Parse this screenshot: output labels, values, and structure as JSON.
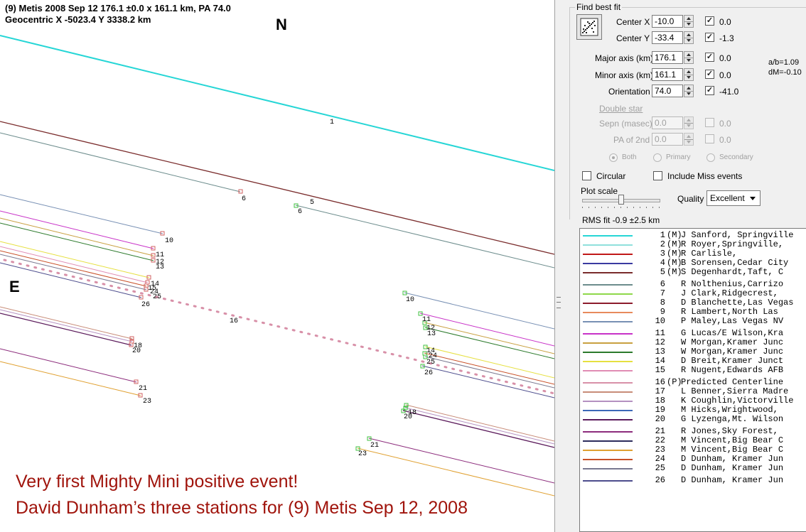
{
  "plot": {
    "header_line1": "(9) Metis  2008 Sep 12   176.1 ±0.0 x 161.1 km, PA 74.0",
    "header_line2": "Geocentric  X -5023.4  Y 3338.2 km",
    "north_label": "N",
    "east_label": "E",
    "caption_line1": "Very first Mighty Mini positive event!",
    "caption_line2": "David Dunham’s three stations for (9) Metis Sep 12, 2008",
    "chord_labels": {
      "l1": "1",
      "l6a": "6",
      "l5": "5",
      "l6b": "6",
      "l10a": "10",
      "l11a": "11",
      "l12a": "12",
      "l13a": "13",
      "l14a": "14",
      "l15a": "15",
      "l24a": "24",
      "l25a": "25",
      "l26a": "26",
      "l16": "16",
      "l18a": "18",
      "l20a": "20",
      "l21a": "21",
      "l23a": "23",
      "l10b": "10",
      "l11b": "11",
      "l12b": "12",
      "l13b": "13",
      "l14b": "14",
      "l24b": "24",
      "l25b": "25",
      "l26b": "26",
      "l18b": "18",
      "l20b": "20",
      "l21b": "21",
      "l23b": "23"
    }
  },
  "panel": {
    "group_title": "Find best fit",
    "fit_icon": "best-fit-chart-icon",
    "center_x_label": "Center X",
    "center_x_value": "-10.0",
    "center_x_check": "0.0",
    "center_y_label": "Center Y",
    "center_y_value": "-33.4",
    "center_y_check": "-1.3",
    "major_label": "Major axis (km)",
    "major_value": "176.1",
    "major_check": "0.0",
    "minor_label": "Minor axis (km)",
    "minor_value": "161.1",
    "minor_check": "0.0",
    "orient_label": "Orientation",
    "orient_value": "74.0",
    "orient_check": "-41.0",
    "ab_ratio": "a/b=1.09",
    "dm": "dM=-0.10",
    "double_star_title": "Double star",
    "sepn_label": "Sepn (masec)",
    "sepn_value": "0.0",
    "sepn_check": "0.0",
    "pa2_label": "PA of 2nd",
    "pa2_value": "0.0",
    "pa2_check": "0.0",
    "radio_both": "Both",
    "radio_primary": "Primary",
    "radio_secondary": "Secondary",
    "circular_label": "Circular",
    "miss_label": "Include Miss events",
    "plot_scale_label": "Plot scale",
    "quality_label": "Quality",
    "quality_value": "Excellent",
    "rms_fit": "RMS fit -0.9 ±2.5 km"
  },
  "observers": [
    {
      "num": "1",
      "flag": "(M)",
      "name": "J Sanford, Springville",
      "color": "#26d6d6"
    },
    {
      "num": "2",
      "flag": "(M)",
      "name": "R Royer,Springville,",
      "color": "#8fe0dc"
    },
    {
      "num": "3",
      "flag": "(M)",
      "name": "R Carlisle,",
      "color": "#c01818"
    },
    {
      "num": "4",
      "flag": "(M)",
      "name": "B Sorensen,Cedar City",
      "color": "#3a3aa0"
    },
    {
      "num": "5",
      "flag": "(M)",
      "name": "S Degenhardt,Taft, C",
      "color": "#7a2c2c"
    },
    {
      "num": "6",
      "flag": "",
      "name": "R Nolthenius,Carrizo",
      "color": "#6c8c8c"
    },
    {
      "num": "7",
      "flag": "",
      "name": "J Clark,Ridgecrest,",
      "color": "#8ed84a"
    },
    {
      "num": "8",
      "flag": "",
      "name": "D Blanchette,Las Vegas",
      "color": "#8c1c2c"
    },
    {
      "num": "9",
      "flag": "",
      "name": "R Lambert,North Las",
      "color": "#e88a5c"
    },
    {
      "num": "10",
      "flag": "",
      "name": "P Maley,Las Vegas NV",
      "color": "#7890b4"
    },
    {
      "num": "11",
      "flag": "",
      "name": "G Lucas/E Wilson,Kra",
      "color": "#c832c8"
    },
    {
      "num": "12",
      "flag": "",
      "name": "W Morgan,Kramer Junc",
      "color": "#c8a040"
    },
    {
      "num": "13",
      "flag": "",
      "name": "W Morgan,Kramer Junc",
      "color": "#2c7a2c"
    },
    {
      "num": "14",
      "flag": "",
      "name": "D Breit,Kramer Junct",
      "color": "#e6e040"
    },
    {
      "num": "15",
      "flag": "",
      "name": "R Nugent,Edwards AFB",
      "color": "#e08cb4"
    },
    {
      "num": "16",
      "flag": "(P)",
      "name": "Predicted Centerline",
      "color": "#d890a8"
    },
    {
      "num": "17",
      "flag": "",
      "name": "L Benner,Sierra Madre",
      "color": "#c88c78"
    },
    {
      "num": "18",
      "flag": "",
      "name": "K Coughlin,Victorville",
      "color": "#b490c0"
    },
    {
      "num": "19",
      "flag": "",
      "name": "M Hicks,Wrightwood,",
      "color": "#3c68b8"
    },
    {
      "num": "20",
      "flag": "",
      "name": "G Lyzenga,Mt. Wilson",
      "color": "#5c1c5c"
    },
    {
      "num": "21",
      "flag": "",
      "name": "R Jones,Sky Forest,",
      "color": "#8c2c7c"
    },
    {
      "num": "22",
      "flag": "",
      "name": "M Vincent,Big Bear C",
      "color": "#2c2c5c"
    },
    {
      "num": "23",
      "flag": "",
      "name": "M Vincent,Big Bear C",
      "color": "#e0a030"
    },
    {
      "num": "24",
      "flag": "",
      "name": "D Dunham, Kramer Jun",
      "color": "#c85028"
    },
    {
      "num": "25",
      "flag": "",
      "name": "D Dunham, Kramer Jun",
      "color": "#787890"
    },
    {
      "num": "26",
      "flag": "",
      "name": "D Dunham, Kramer Jun",
      "color": "#4c4c8c"
    }
  ]
}
